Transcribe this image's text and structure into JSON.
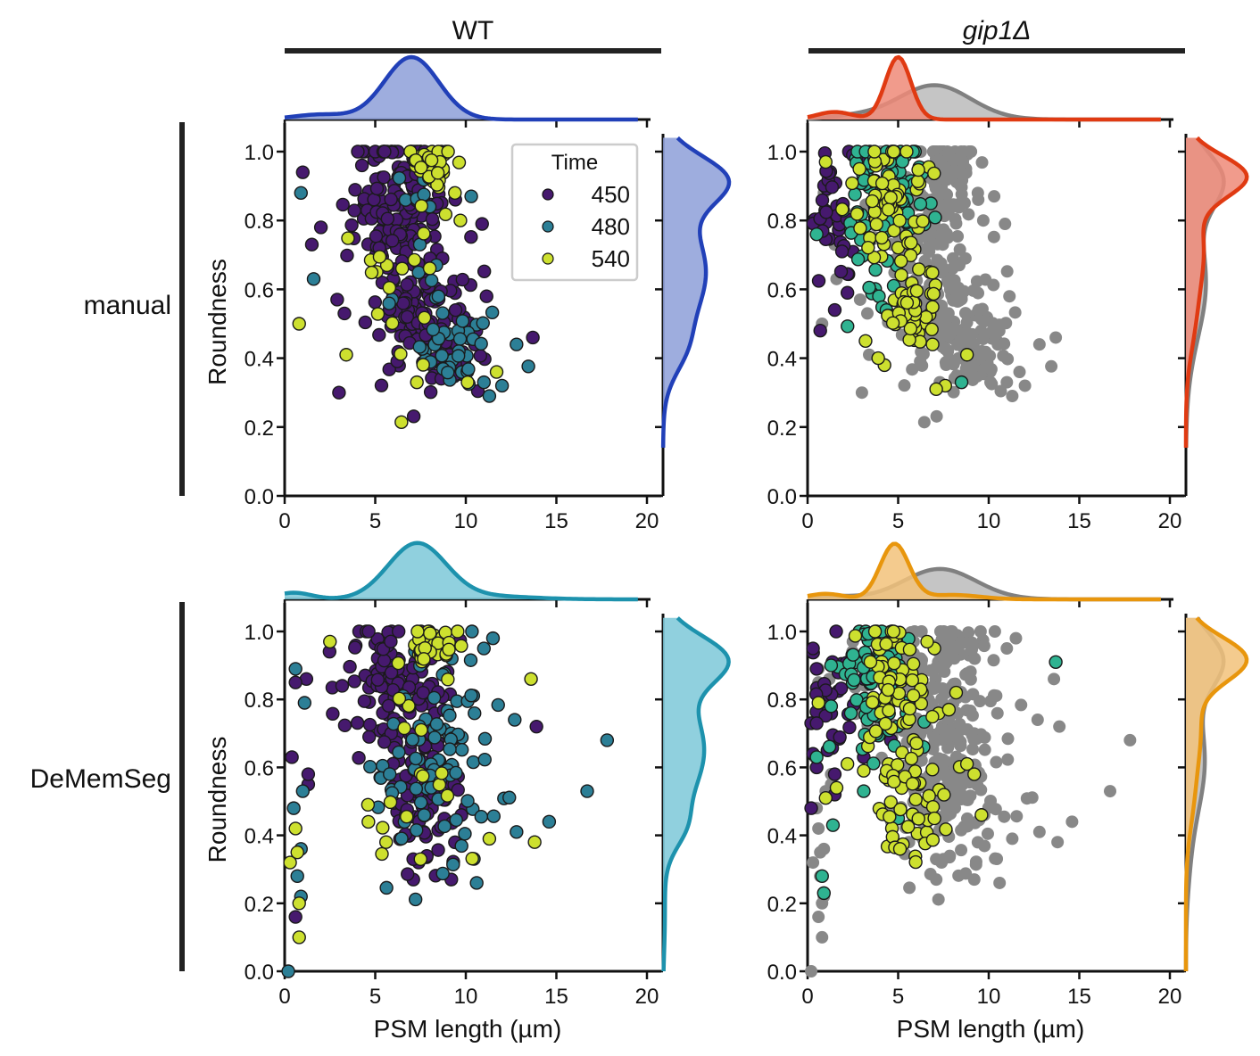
{
  "figure": {
    "column_titles": [
      "WT",
      "gip1Δ"
    ],
    "row_titles": [
      "manual",
      "DeMemSeg"
    ],
    "legend": {
      "title": "Time",
      "entries": [
        {
          "label": "450",
          "color": "#46196e"
        },
        {
          "label": "480",
          "color": "#2c7f96"
        },
        {
          "label": "540",
          "color": "#cde02f"
        }
      ],
      "placement": "top-right of top-left panel"
    }
  },
  "chart_data": [
    {
      "type": "scatter",
      "panel": "WT-manual",
      "title": "",
      "xlabel": "",
      "ylabel": "Roundness",
      "xlim": [
        0,
        20.5
      ],
      "ylim": [
        0,
        1.06
      ],
      "xticks": [
        "0",
        "5",
        "10",
        "15",
        "20"
      ],
      "yticks": [
        "0.0",
        "0.2",
        "0.4",
        "0.6",
        "0.8",
        "1.0"
      ],
      "background_series": null,
      "series": [
        {
          "name": "450",
          "color": "#46196e",
          "clusters": [
            {
              "cx": 6.2,
              "cy": 0.86,
              "sx": 1.5,
              "sy": 0.11,
              "n": 150
            },
            {
              "cx": 7.4,
              "cy": 0.55,
              "sx": 1.2,
              "sy": 0.09,
              "n": 110
            },
            {
              "cx": 9.0,
              "cy": 0.4,
              "sx": 1.0,
              "sy": 0.05,
              "n": 40
            }
          ],
          "points": [
            [
              1.0,
              0.94
            ],
            [
              3.0,
              0.3
            ],
            [
              13.7,
              0.46
            ],
            [
              10.9,
              0.79
            ],
            [
              2.0,
              0.78
            ],
            [
              3.3,
              0.53
            ],
            [
              1.5,
              0.73
            ],
            [
              2.9,
              0.57
            ]
          ]
        },
        {
          "name": "480",
          "color": "#2c7f96",
          "clusters": [
            {
              "cx": 9.5,
              "cy": 0.43,
              "sx": 1.1,
              "sy": 0.06,
              "n": 35
            },
            {
              "cx": 7.5,
              "cy": 0.7,
              "sx": 1.5,
              "sy": 0.15,
              "n": 15
            }
          ],
          "points": [
            [
              0.9,
              0.88
            ],
            [
              1.6,
              0.63
            ],
            [
              10.3,
              0.87
            ],
            [
              11.3,
              0.29
            ],
            [
              12.0,
              0.32
            ],
            [
              12.8,
              0.44
            ],
            [
              11.0,
              0.33
            ]
          ]
        },
        {
          "name": "540",
          "color": "#cde02f",
          "clusters": [
            {
              "cx": 8.2,
              "cy": 0.96,
              "sx": 0.6,
              "sy": 0.03,
              "n": 40
            },
            {
              "cx": 6.5,
              "cy": 0.65,
              "sx": 2.0,
              "sy": 0.2,
              "n": 20
            }
          ],
          "points": [
            [
              0.8,
              0.5
            ],
            [
              3.4,
              0.41
            ],
            [
              9.7,
              0.8
            ],
            [
              9.4,
              0.88
            ],
            [
              11.7,
              0.36
            ],
            [
              10.1,
              0.33
            ],
            [
              7.3,
              0.33
            ]
          ]
        }
      ],
      "kde_x": {
        "color": "#2140b8",
        "fill": "#8d9fd8",
        "peaks": [
          {
            "mu": 7.0,
            "sd": 1.5,
            "w": 1.0
          },
          {
            "mu": 2.0,
            "sd": 1.5,
            "w": 0.08
          }
        ]
      },
      "kde_y": {
        "color": "#2140b8",
        "fill": "#8d9fd8",
        "peaks": [
          {
            "mu": 0.92,
            "sd": 0.07,
            "w": 1.0
          },
          {
            "mu": 0.65,
            "sd": 0.15,
            "w": 0.75
          },
          {
            "mu": 0.42,
            "sd": 0.07,
            "w": 0.2
          }
        ]
      }
    },
    {
      "type": "scatter",
      "panel": "gip1Δ-manual",
      "xlabel": "",
      "ylabel": "",
      "xlim": [
        0,
        20.5
      ],
      "ylim": [
        0,
        1.06
      ],
      "xticks": [
        "0",
        "5",
        "10",
        "15",
        "20"
      ],
      "yticks": [
        "0.0",
        "0.2",
        "0.4",
        "0.6",
        "0.8",
        "1.0"
      ],
      "background_series": {
        "name": "WT (all)",
        "color": "#888888",
        "source_panel": "WT-manual"
      },
      "series": [
        {
          "name": "450",
          "color": "#46196e",
          "clusters": [
            {
              "cx": 1.3,
              "cy": 0.82,
              "sx": 0.6,
              "sy": 0.09,
              "n": 35
            }
          ],
          "points": [
            [
              0.7,
              0.48
            ],
            [
              1.5,
              0.54
            ],
            [
              2.2,
              0.59
            ],
            [
              3.0,
              0.98
            ],
            [
              2.5,
              0.99
            ]
          ]
        },
        {
          "name": "480",
          "color": "#2fb391",
          "clusters": [
            {
              "cx": 4.3,
              "cy": 0.87,
              "sx": 1.0,
              "sy": 0.09,
              "n": 90
            },
            {
              "cx": 3.5,
              "cy": 0.6,
              "sx": 0.8,
              "sy": 0.05,
              "n": 10
            }
          ],
          "points": [
            [
              0.5,
              0.76
            ],
            [
              8.5,
              0.33
            ],
            [
              5.9,
              0.48
            ]
          ]
        },
        {
          "name": "540",
          "color": "#cde02f",
          "clusters": [
            {
              "cx": 4.6,
              "cy": 0.88,
              "sx": 1.0,
              "sy": 0.09,
              "n": 60
            },
            {
              "cx": 5.7,
              "cy": 0.55,
              "sx": 0.7,
              "sy": 0.07,
              "n": 50
            }
          ],
          "points": [
            [
              1.0,
              0.97
            ],
            [
              3.2,
              0.45
            ],
            [
              3.9,
              0.4
            ],
            [
              7.6,
              0.32
            ],
            [
              8.8,
              0.41
            ],
            [
              7.1,
              0.31
            ],
            [
              6.9,
              0.44
            ]
          ]
        }
      ],
      "kde_x": {
        "color": "#e03a12",
        "fill": "#ef8a78",
        "peaks": [
          {
            "mu": 5.0,
            "sd": 0.7,
            "w": 1.0
          },
          {
            "mu": 1.5,
            "sd": 1.0,
            "w": 0.12
          }
        ],
        "ref": {
          "color": "#808080",
          "fill": "#bbbbbb",
          "peaks": [
            {
              "mu": 7.0,
              "sd": 2.0,
              "w": 0.55
            },
            {
              "mu": 2.5,
              "sd": 1.5,
              "w": 0.05
            }
          ]
        }
      },
      "kde_y": {
        "color": "#e03a12",
        "fill": "#ef8a78",
        "peaks": [
          {
            "mu": 0.93,
            "sd": 0.06,
            "w": 1.0
          },
          {
            "mu": 0.72,
            "sd": 0.12,
            "w": 0.3
          },
          {
            "mu": 0.5,
            "sd": 0.1,
            "w": 0.12
          }
        ],
        "ref": {
          "color": "#808080",
          "fill": "#bbbbbb",
          "peaks": [
            {
              "mu": 0.92,
              "sd": 0.08,
              "w": 0.6
            },
            {
              "mu": 0.62,
              "sd": 0.16,
              "w": 0.35
            }
          ]
        }
      }
    },
    {
      "type": "scatter",
      "panel": "WT-DeMemSeg",
      "xlabel": "PSM length (µm)",
      "ylabel": "Roundness",
      "xlim": [
        0,
        20.5
      ],
      "ylim": [
        0,
        1.06
      ],
      "xticks": [
        "0",
        "5",
        "10",
        "15",
        "20"
      ],
      "yticks": [
        "0.0",
        "0.2",
        "0.4",
        "0.6",
        "0.8",
        "1.0"
      ],
      "background_series": null,
      "series": [
        {
          "name": "450",
          "color": "#46196e",
          "clusters": [
            {
              "cx": 6.2,
              "cy": 0.84,
              "sx": 1.5,
              "sy": 0.12,
              "n": 120
            },
            {
              "cx": 7.7,
              "cy": 0.5,
              "sx": 1.1,
              "sy": 0.1,
              "n": 90
            }
          ],
          "points": [
            [
              0.4,
              0.63
            ],
            [
              1.2,
              0.86
            ],
            [
              0.6,
              0.85
            ],
            [
              1.3,
              0.55
            ],
            [
              1.3,
              0.58
            ],
            [
              0.6,
              0.16
            ],
            [
              9.2,
              0.27
            ],
            [
              13.9,
              0.72
            ],
            [
              7.1,
              0.33
            ]
          ]
        },
        {
          "name": "480",
          "color": "#2c7f96",
          "clusters": [
            {
              "cx": 8.5,
              "cy": 0.6,
              "sx": 1.6,
              "sy": 0.17,
              "n": 90
            }
          ],
          "points": [
            [
              0.6,
              0.89
            ],
            [
              0.5,
              0.48
            ],
            [
              1.0,
              0.53
            ],
            [
              0.9,
              0.36
            ],
            [
              0.7,
              0.28
            ],
            [
              0.9,
              0.22
            ],
            [
              1.1,
              0.79
            ],
            [
              17.8,
              0.68
            ],
            [
              16.7,
              0.53
            ],
            [
              14.6,
              0.44
            ],
            [
              10.6,
              0.26
            ],
            [
              12.8,
              0.41
            ],
            [
              11.0,
              0.95
            ],
            [
              11.5,
              0.98
            ],
            [
              12.7,
              0.74
            ],
            [
              0.2,
              0.0
            ]
          ]
        },
        {
          "name": "540",
          "color": "#cde02f",
          "clusters": [
            {
              "cx": 8.0,
              "cy": 0.95,
              "sx": 0.8,
              "sy": 0.04,
              "n": 35
            },
            {
              "cx": 7.5,
              "cy": 0.62,
              "sx": 1.5,
              "sy": 0.15,
              "n": 15
            }
          ],
          "points": [
            [
              0.3,
              0.32
            ],
            [
              0.6,
              0.42
            ],
            [
              0.8,
              0.2
            ],
            [
              0.8,
              0.1
            ],
            [
              0.7,
              0.35
            ],
            [
              2.5,
              0.97
            ],
            [
              13.6,
              0.86
            ],
            [
              13.8,
              0.38
            ],
            [
              4.6,
              0.49
            ],
            [
              7.5,
              0.33
            ],
            [
              11.3,
              0.39
            ],
            [
              5.6,
              0.38
            ]
          ]
        }
      ],
      "kde_x": {
        "color": "#1d92ad",
        "fill": "#7dc8d8",
        "peaks": [
          {
            "mu": 7.3,
            "sd": 1.6,
            "w": 1.0
          },
          {
            "mu": 0.5,
            "sd": 1.0,
            "w": 0.12
          },
          {
            "mu": 11.0,
            "sd": 2.5,
            "w": 0.06
          }
        ]
      },
      "kde_y": {
        "color": "#1d92ad",
        "fill": "#7dc8d8",
        "peaks": [
          {
            "mu": 0.92,
            "sd": 0.07,
            "w": 1.0
          },
          {
            "mu": 0.65,
            "sd": 0.15,
            "w": 0.72
          },
          {
            "mu": 0.42,
            "sd": 0.06,
            "w": 0.2
          },
          {
            "mu": 0.15,
            "sd": 0.1,
            "w": 0.03
          }
        ]
      }
    },
    {
      "type": "scatter",
      "panel": "gip1Δ-DeMemSeg",
      "xlabel": "PSM length (µm)",
      "ylabel": "",
      "xlim": [
        0,
        20.5
      ],
      "ylim": [
        0,
        1.06
      ],
      "xticks": [
        "0",
        "5",
        "10",
        "15",
        "20"
      ],
      "yticks": [
        "0.0",
        "0.2",
        "0.4",
        "0.6",
        "0.8",
        "1.0"
      ],
      "background_series": {
        "name": "WT (all)",
        "color": "#888888",
        "source_panel": "WT-DeMemSeg"
      },
      "series": [
        {
          "name": "450",
          "color": "#46196e",
          "clusters": [
            {
              "cx": 1.4,
              "cy": 0.82,
              "sx": 0.7,
              "sy": 0.09,
              "n": 30
            }
          ],
          "points": [
            [
              0.3,
              0.95
            ],
            [
              0.5,
              0.89
            ],
            [
              0.2,
              0.73
            ],
            [
              0.5,
              0.73
            ],
            [
              0.3,
              0.64
            ],
            [
              0.5,
              0.6
            ],
            [
              1.1,
              0.65
            ],
            [
              1.5,
              0.58
            ],
            [
              1.5,
              0.52
            ],
            [
              0.2,
              0.48
            ],
            [
              3.1,
              0.63
            ],
            [
              4.6,
              0.68
            ]
          ]
        },
        {
          "name": "480",
          "color": "#2fb391",
          "clusters": [
            {
              "cx": 3.9,
              "cy": 0.85,
              "sx": 0.9,
              "sy": 0.1,
              "n": 80
            }
          ],
          "points": [
            [
              1.3,
              0.9
            ],
            [
              1.3,
              0.78
            ],
            [
              0.5,
              0.63
            ],
            [
              1.4,
              0.43
            ],
            [
              0.8,
              0.28
            ],
            [
              0.9,
              0.23
            ],
            [
              13.7,
              0.91
            ],
            [
              6.4,
              0.66
            ],
            [
              5.0,
              0.45
            ],
            [
              3.1,
              0.53
            ]
          ]
        },
        {
          "name": "540",
          "color": "#cde02f",
          "clusters": [
            {
              "cx": 4.5,
              "cy": 0.85,
              "sx": 1.0,
              "sy": 0.1,
              "n": 55
            },
            {
              "cx": 5.6,
              "cy": 0.55,
              "sx": 1.0,
              "sy": 0.1,
              "n": 55
            }
          ],
          "points": [
            [
              0.6,
              0.79
            ],
            [
              1.0,
              0.51
            ],
            [
              1.6,
              0.54
            ],
            [
              2.2,
              0.61
            ],
            [
              9.2,
              0.58
            ],
            [
              8.8,
              0.61
            ],
            [
              7.0,
              0.45
            ],
            [
              9.6,
              0.46
            ],
            [
              8.2,
              0.82
            ],
            [
              7.8,
              0.77
            ],
            [
              7.0,
              0.95
            ],
            [
              6.6,
              0.97
            ],
            [
              5.1,
              0.36
            ],
            [
              3.1,
              0.59
            ]
          ]
        }
      ],
      "kde_x": {
        "color": "#e8960d",
        "fill": "#f2c27a",
        "peaks": [
          {
            "mu": 4.8,
            "sd": 0.8,
            "w": 1.0
          },
          {
            "mu": 1.0,
            "sd": 1.0,
            "w": 0.1
          },
          {
            "mu": 8.0,
            "sd": 1.5,
            "w": 0.08
          }
        ],
        "ref": {
          "color": "#808080",
          "fill": "#bbbbbb",
          "peaks": [
            {
              "mu": 7.3,
              "sd": 2.0,
              "w": 0.55
            },
            {
              "mu": 1.0,
              "sd": 1.5,
              "w": 0.06
            }
          ]
        }
      },
      "kde_y": {
        "color": "#e8960d",
        "fill": "#f2c27a",
        "peaks": [
          {
            "mu": 0.92,
            "sd": 0.065,
            "w": 1.0
          },
          {
            "mu": 0.72,
            "sd": 0.12,
            "w": 0.25
          },
          {
            "mu": 0.5,
            "sd": 0.1,
            "w": 0.1
          }
        ],
        "ref": {
          "color": "#808080",
          "fill": "#bbbbbb",
          "peaks": [
            {
              "mu": 0.92,
              "sd": 0.08,
              "w": 0.6
            },
            {
              "mu": 0.62,
              "sd": 0.16,
              "w": 0.33
            },
            {
              "mu": 0.3,
              "sd": 0.1,
              "w": 0.03
            }
          ]
        }
      }
    }
  ]
}
